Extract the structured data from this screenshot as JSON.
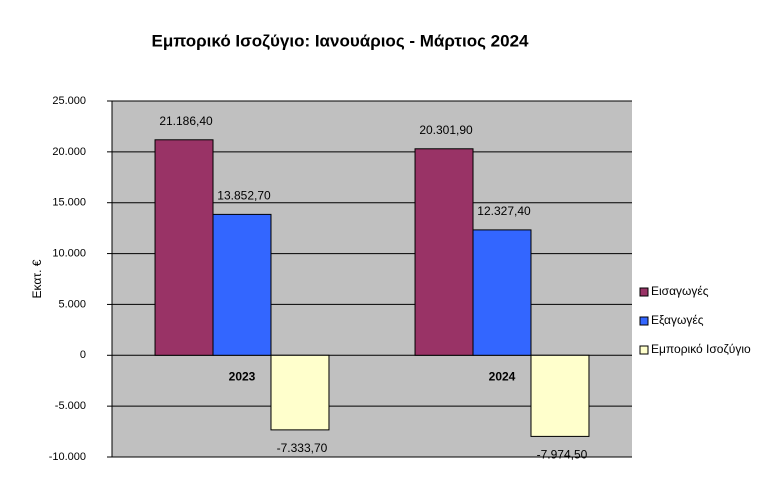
{
  "chart_data": {
    "type": "bar",
    "title": "Εμπορικό Ισοζύγιο: Ιανουάριος - Μάρτιος 2024",
    "y_label": "Εκατ. €",
    "categories": [
      "2023",
      "2024"
    ],
    "series": [
      {
        "name": "Εισαγωγές",
        "color": "#993366",
        "values": [
          21186.4,
          20301.9
        ],
        "value_labels": [
          "21.186,40",
          "20.301,90"
        ]
      },
      {
        "name": "Εξαγωγές",
        "color": "#3366ff",
        "values": [
          13852.7,
          12327.4
        ],
        "value_labels": [
          "13.852,70",
          "12.327,40"
        ]
      },
      {
        "name": "Εμπορικό Ισοζύγιο",
        "color": "#ffffcc",
        "values": [
          -7333.7,
          -7974.5
        ],
        "value_labels": [
          "-7.333,70",
          "-7.974,50"
        ]
      }
    ],
    "ylim": [
      -10000,
      25000
    ],
    "yticks": [
      {
        "value": -10000,
        "label": "-10.000"
      },
      {
        "value": -5000,
        "label": "-5.000"
      },
      0,
      {
        "value": 5000,
        "label": "5.000"
      },
      {
        "value": 10000,
        "label": "10.000"
      },
      {
        "value": 15000,
        "label": "15.000"
      },
      {
        "value": 20000,
        "label": "20.000"
      },
      {
        "value": 25000,
        "label": "25.000"
      }
    ],
    "grid": true,
    "legend": "right",
    "plot_background": "#c0c0c0"
  }
}
